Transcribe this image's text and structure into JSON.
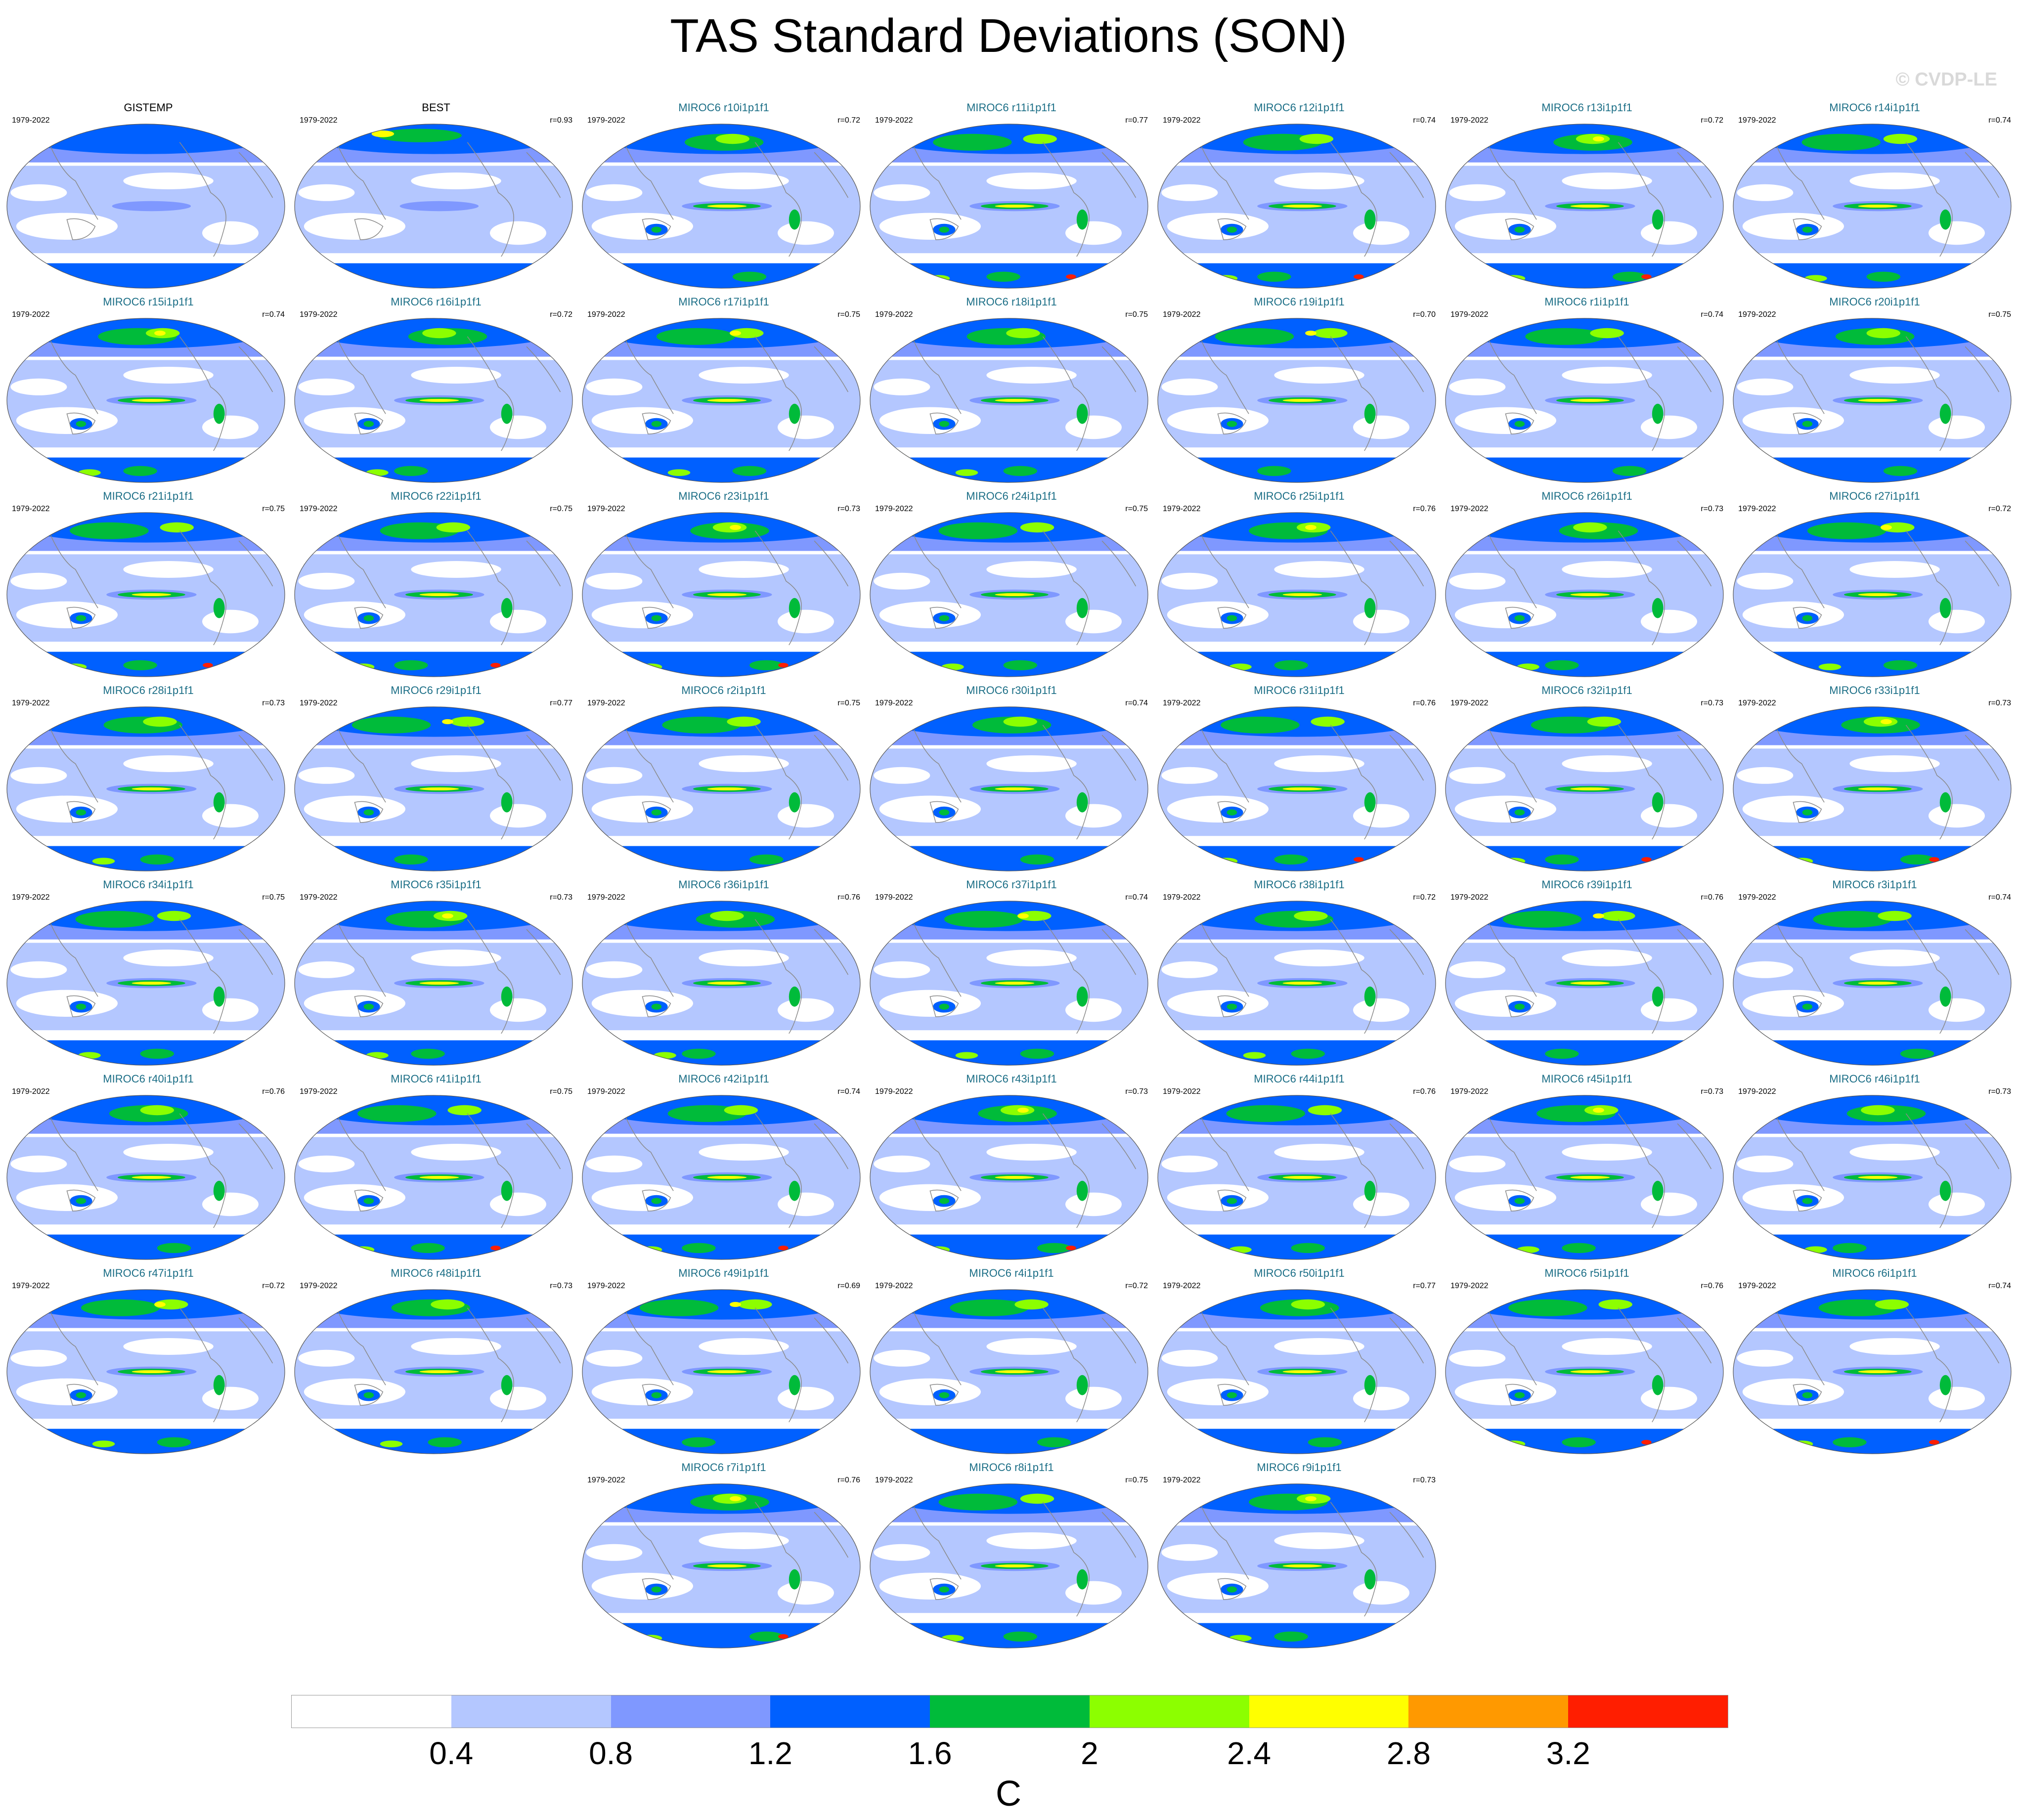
{
  "title": "TAS Standard Deviations (SON)",
  "watermark": "© CVDP-LE",
  "colorbar": {
    "colors": [
      "#ffffff",
      "#b4c7ff",
      "#7f98ff",
      "#0060ff",
      "#00bb3a",
      "#8cff00",
      "#ffff00",
      "#ff9900",
      "#ff1e00"
    ],
    "tick_labels": [
      "0.4",
      "0.8",
      "1.2",
      "1.6",
      "2",
      "2.4",
      "2.8",
      "3.2"
    ],
    "unit": "C"
  },
  "map_colors": {
    "ocean": "#ffffff",
    "light": "#b4c7ff",
    "mid": "#7f98ff",
    "strong": "#0060ff",
    "green": "#00bb3a",
    "lime": "#8cff00",
    "yellow": "#ffff00",
    "orange": "#ff9900",
    "red": "#ff1e00",
    "coast": "#8a8a8a"
  },
  "panels": [
    {
      "title": "GISTEMP",
      "period": "1979-2022",
      "r": "",
      "obs": true
    },
    {
      "title": "BEST",
      "period": "1979-2022",
      "r": "r=0.93",
      "obs": true
    },
    {
      "title": "MIROC6 r10i1p1f1",
      "period": "1979-2022",
      "r": "r=0.72"
    },
    {
      "title": "MIROC6 r11i1p1f1",
      "period": "1979-2022",
      "r": "r=0.77"
    },
    {
      "title": "MIROC6 r12i1p1f1",
      "period": "1979-2022",
      "r": "r=0.74"
    },
    {
      "title": "MIROC6 r13i1p1f1",
      "period": "1979-2022",
      "r": "r=0.72"
    },
    {
      "title": "MIROC6 r14i1p1f1",
      "period": "1979-2022",
      "r": "r=0.74"
    },
    {
      "title": "MIROC6 r15i1p1f1",
      "period": "1979-2022",
      "r": "r=0.74"
    },
    {
      "title": "MIROC6 r16i1p1f1",
      "period": "1979-2022",
      "r": "r=0.72"
    },
    {
      "title": "MIROC6 r17i1p1f1",
      "period": "1979-2022",
      "r": "r=0.75"
    },
    {
      "title": "MIROC6 r18i1p1f1",
      "period": "1979-2022",
      "r": "r=0.75"
    },
    {
      "title": "MIROC6 r19i1p1f1",
      "period": "1979-2022",
      "r": "r=0.70"
    },
    {
      "title": "MIROC6 r1i1p1f1",
      "period": "1979-2022",
      "r": "r=0.74"
    },
    {
      "title": "MIROC6 r20i1p1f1",
      "period": "1979-2022",
      "r": "r=0.75"
    },
    {
      "title": "MIROC6 r21i1p1f1",
      "period": "1979-2022",
      "r": "r=0.75"
    },
    {
      "title": "MIROC6 r22i1p1f1",
      "period": "1979-2022",
      "r": "r=0.75"
    },
    {
      "title": "MIROC6 r23i1p1f1",
      "period": "1979-2022",
      "r": "r=0.73"
    },
    {
      "title": "MIROC6 r24i1p1f1",
      "period": "1979-2022",
      "r": "r=0.75"
    },
    {
      "title": "MIROC6 r25i1p1f1",
      "period": "1979-2022",
      "r": "r=0.76"
    },
    {
      "title": "MIROC6 r26i1p1f1",
      "period": "1979-2022",
      "r": "r=0.73"
    },
    {
      "title": "MIROC6 r27i1p1f1",
      "period": "1979-2022",
      "r": "r=0.72"
    },
    {
      "title": "MIROC6 r28i1p1f1",
      "period": "1979-2022",
      "r": "r=0.73"
    },
    {
      "title": "MIROC6 r29i1p1f1",
      "period": "1979-2022",
      "r": "r=0.77"
    },
    {
      "title": "MIROC6 r2i1p1f1",
      "period": "1979-2022",
      "r": "r=0.75"
    },
    {
      "title": "MIROC6 r30i1p1f1",
      "period": "1979-2022",
      "r": "r=0.74"
    },
    {
      "title": "MIROC6 r31i1p1f1",
      "period": "1979-2022",
      "r": "r=0.76"
    },
    {
      "title": "MIROC6 r32i1p1f1",
      "period": "1979-2022",
      "r": "r=0.73"
    },
    {
      "title": "MIROC6 r33i1p1f1",
      "period": "1979-2022",
      "r": "r=0.73"
    },
    {
      "title": "MIROC6 r34i1p1f1",
      "period": "1979-2022",
      "r": "r=0.75"
    },
    {
      "title": "MIROC6 r35i1p1f1",
      "period": "1979-2022",
      "r": "r=0.73"
    },
    {
      "title": "MIROC6 r36i1p1f1",
      "period": "1979-2022",
      "r": "r=0.76"
    },
    {
      "title": "MIROC6 r37i1p1f1",
      "period": "1979-2022",
      "r": "r=0.74"
    },
    {
      "title": "MIROC6 r38i1p1f1",
      "period": "1979-2022",
      "r": "r=0.72"
    },
    {
      "title": "MIROC6 r39i1p1f1",
      "period": "1979-2022",
      "r": "r=0.76"
    },
    {
      "title": "MIROC6 r3i1p1f1",
      "period": "1979-2022",
      "r": "r=0.74"
    },
    {
      "title": "MIROC6 r40i1p1f1",
      "period": "1979-2022",
      "r": "r=0.76"
    },
    {
      "title": "MIROC6 r41i1p1f1",
      "period": "1979-2022",
      "r": "r=0.75"
    },
    {
      "title": "MIROC6 r42i1p1f1",
      "period": "1979-2022",
      "r": "r=0.74"
    },
    {
      "title": "MIROC6 r43i1p1f1",
      "period": "1979-2022",
      "r": "r=0.73"
    },
    {
      "title": "MIROC6 r44i1p1f1",
      "period": "1979-2022",
      "r": "r=0.76"
    },
    {
      "title": "MIROC6 r45i1p1f1",
      "period": "1979-2022",
      "r": "r=0.73"
    },
    {
      "title": "MIROC6 r46i1p1f1",
      "period": "1979-2022",
      "r": "r=0.73"
    },
    {
      "title": "MIROC6 r47i1p1f1",
      "period": "1979-2022",
      "r": "r=0.72"
    },
    {
      "title": "MIROC6 r48i1p1f1",
      "period": "1979-2022",
      "r": "r=0.73"
    },
    {
      "title": "MIROC6 r49i1p1f1",
      "period": "1979-2022",
      "r": "r=0.69"
    },
    {
      "title": "MIROC6 r4i1p1f1",
      "period": "1979-2022",
      "r": "r=0.72"
    },
    {
      "title": "MIROC6 r50i1p1f1",
      "period": "1979-2022",
      "r": "r=0.77"
    },
    {
      "title": "MIROC6 r5i1p1f1",
      "period": "1979-2022",
      "r": "r=0.76"
    },
    {
      "title": "MIROC6 r6i1p1f1",
      "period": "1979-2022",
      "r": "r=0.74"
    },
    {
      "title": "MIROC6 r7i1p1f1",
      "period": "1979-2022",
      "r": "r=0.76"
    },
    {
      "title": "MIROC6 r8i1p1f1",
      "period": "1979-2022",
      "r": "r=0.75"
    },
    {
      "title": "MIROC6 r9i1p1f1",
      "period": "1979-2022",
      "r": "r=0.73"
    }
  ]
}
